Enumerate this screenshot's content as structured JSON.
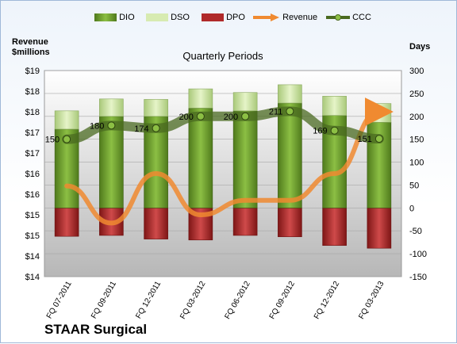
{
  "legend": {
    "dio": "DIO",
    "dso": "DSO",
    "dpo": "DPO",
    "revenue": "Revenue",
    "ccc": "CCC"
  },
  "left_axis_title": [
    "Revenue",
    "$millions"
  ],
  "right_axis_title": "Days",
  "plot_title": "Quarterly Periods",
  "company": "STAAR Surgical",
  "colors": {
    "dio": "#6a9a2e",
    "dso": "#c8e29a",
    "dpo": "#b02a2a",
    "revenue": "#f08a30",
    "ccc": "#4a6a20"
  },
  "chart_data": {
    "type": "bar",
    "categories": [
      "FQ 07-2011",
      "FQ 09-2011",
      "FQ 12-2011",
      "FQ 03-2012",
      "FQ 06-2012",
      "FQ 09-2012",
      "FQ 12-2012",
      "FQ 03-2013"
    ],
    "series": [
      {
        "name": "DIO",
        "axis": "right",
        "values": [
          172,
          200,
          200,
          218,
          212,
          229,
          202,
          187
        ]
      },
      {
        "name": "DSO",
        "axis": "right",
        "values": [
          40,
          38,
          37,
          42,
          40,
          40,
          42,
          41
        ]
      },
      {
        "name": "DPO",
        "axis": "right",
        "values": [
          -62,
          -60,
          -68,
          -70,
          -60,
          -63,
          -82,
          -88
        ]
      },
      {
        "name": "Revenue",
        "axis": "left",
        "type": "line",
        "values": [
          16.2,
          15.3,
          16.5,
          15.5,
          15.85,
          15.85,
          16.5,
          18.0
        ]
      },
      {
        "name": "CCC",
        "axis": "right",
        "type": "line",
        "values": [
          150,
          180,
          174,
          200,
          200,
          211,
          169,
          151
        ]
      }
    ],
    "data_labels": [
      "150",
      "180",
      "174",
      "200",
      "200",
      "211",
      "169",
      "151"
    ],
    "left_ticks": [
      "$19",
      "$18",
      "$18",
      "$17",
      "$17",
      "$16",
      "$16",
      "$15",
      "$15",
      "$14",
      "$14"
    ],
    "right_ticks": [
      "300",
      "250",
      "200",
      "150",
      "100",
      "50",
      "0",
      "-50",
      "-100",
      "-150"
    ],
    "left_ylim": [
      14,
      19
    ],
    "right_ylim": [
      -150,
      300
    ],
    "ylabel_left": "Revenue $millions",
    "ylabel_right": "Days",
    "title": "Quarterly Periods",
    "legend_position": "top"
  }
}
